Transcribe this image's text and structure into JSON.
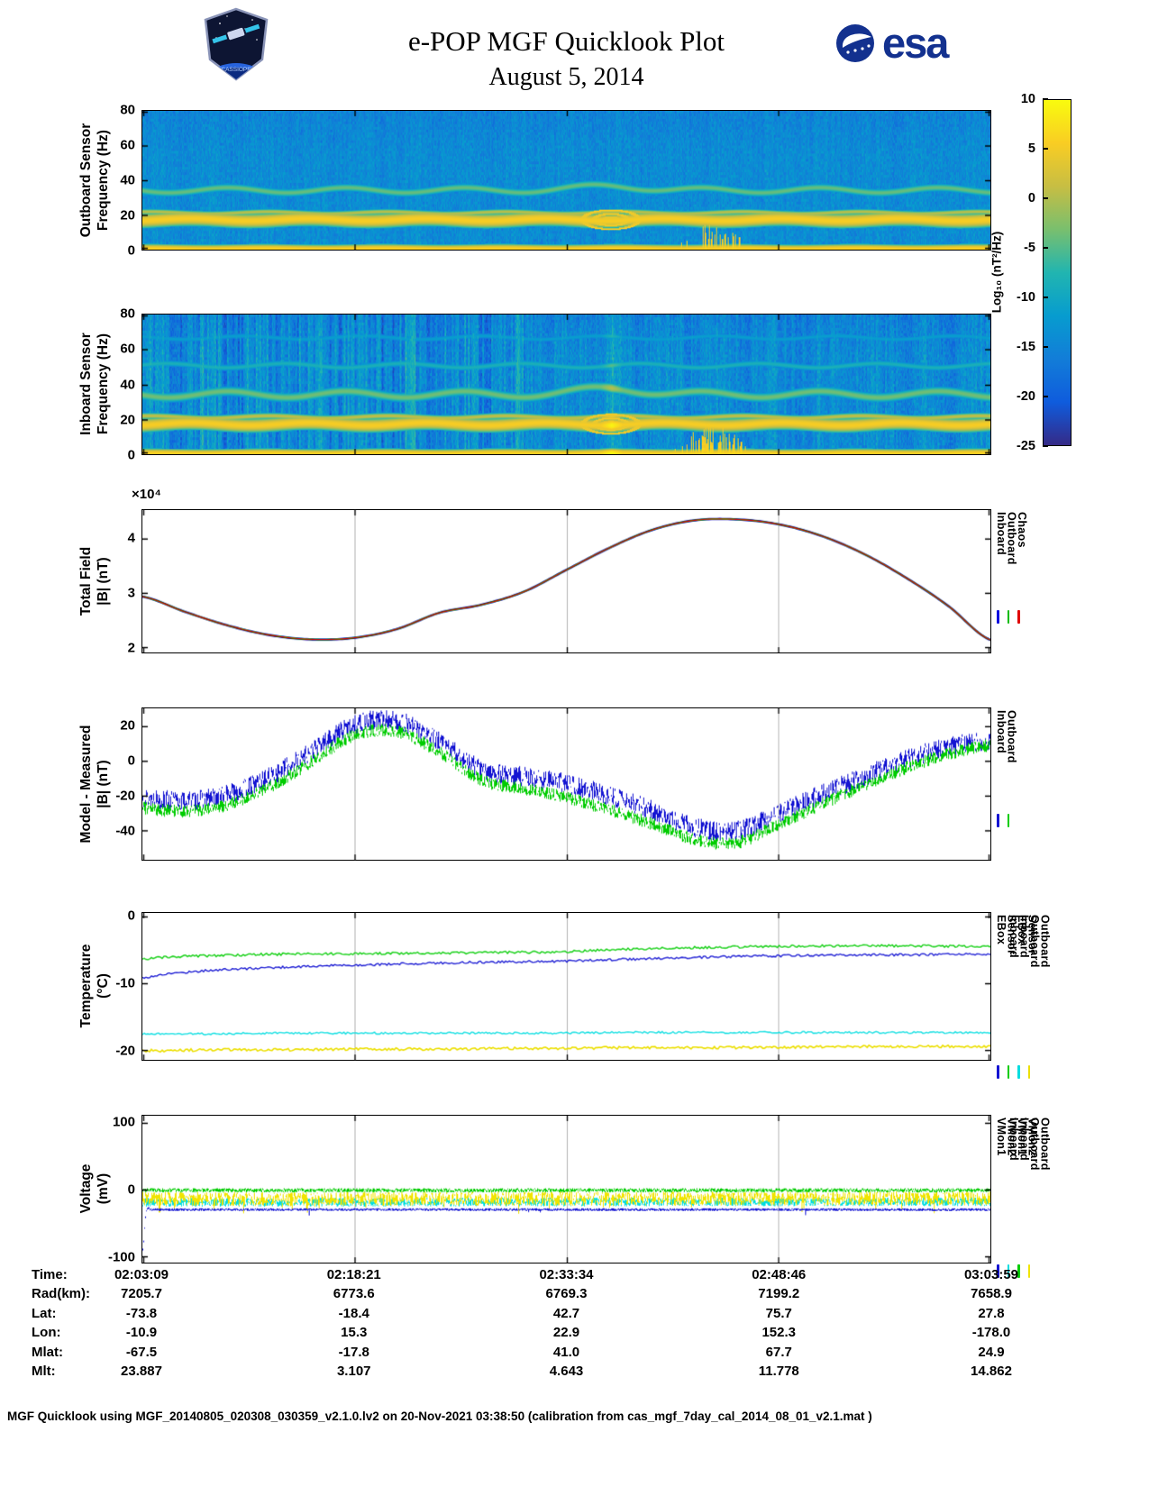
{
  "page": {
    "title_line1": "e-POP MGF Quicklook Plot",
    "title_line2": "August 5, 2014",
    "footer": "MGF Quicklook using MGF_20140805_020308_030359_v2.1.0.lv2 on 20-Nov-2021 03:38:50 (calibration from cas_mgf_7day_cal_2014_08_01_v2.1.mat )"
  },
  "logos": {
    "esa_text": "esa",
    "cassiope_text": "CASSIOPE"
  },
  "colorbar": {
    "label": "Log₁₀ (nT²/Hz)",
    "ticks": [
      "10",
      "5",
      "0",
      "-5",
      "-10",
      "-15",
      "-20",
      "-25"
    ],
    "value_range": [
      -25,
      10
    ],
    "colormap": [
      "#352a87",
      "#0f5cdd",
      "#127dd8",
      "#079ccf",
      "#21b5b0",
      "#79bf6e",
      "#c7be43",
      "#f9cd23",
      "#f9fb0e"
    ]
  },
  "time_axis": {
    "rows": [
      {
        "label": "Time:",
        "values": [
          "02:03:09",
          "02:18:21",
          "02:33:34",
          "02:48:46",
          "03:03:59"
        ]
      },
      {
        "label": "Rad(km):",
        "values": [
          "7205.7",
          "6773.6",
          "6769.3",
          "7199.2",
          "7658.9"
        ]
      },
      {
        "label": "Lat:",
        "values": [
          "-73.8",
          "-18.4",
          "42.7",
          "75.7",
          "27.8"
        ]
      },
      {
        "label": "Lon:",
        "values": [
          "-10.9",
          "15.3",
          "22.9",
          "152.3",
          "-178.0"
        ]
      },
      {
        "label": "Mlat:",
        "values": [
          "-67.5",
          "-17.8",
          "41.0",
          "67.7",
          "24.9"
        ]
      },
      {
        "label": "Mlt:",
        "values": [
          "23.887",
          "3.107",
          "4.643",
          "11.778",
          "14.862"
        ]
      }
    ]
  },
  "chart_data": [
    {
      "type": "heatmap",
      "id": "outboard_spectrogram",
      "ylabel": [
        "Outboard Sensor",
        "Frequency (Hz)"
      ],
      "xlabel": "",
      "ylim": [
        0,
        80
      ],
      "yticks": [
        0,
        20,
        40,
        60,
        80
      ],
      "x_range": [
        "02:03:09",
        "03:03:59"
      ],
      "value_units": "Log₁₀ (nT²/Hz)",
      "value_range": [
        -25,
        10
      ],
      "background_level": -14,
      "noise_amp": 2.4,
      "stripe_amp": 1.0,
      "bands": [
        {
          "freq": 0.7,
          "halfwidth": 1.1,
          "level": 6,
          "wiggle": 0.2
        },
        {
          "freq": 17.5,
          "halfwidth": 1.8,
          "level": 5.5,
          "wiggle": 0.7
        },
        {
          "freq": 21.5,
          "halfwidth": 0.7,
          "level": 0.5,
          "wiggle": 0.6
        },
        {
          "freq": 34.5,
          "halfwidth": 1.1,
          "level": -4,
          "wiggle": 1.5,
          "bump": {
            "x": 0.553,
            "df": 2.5,
            "width": 0.05
          }
        }
      ],
      "ellipse": {
        "x_center": 0.552,
        "freq_center": 17.5,
        "x_halfwidth": 0.033,
        "freq_halfheight": 5.5,
        "level": 4.5
      },
      "bursts": {
        "x_start": 0.63,
        "x_end": 0.715,
        "max_freq": 14,
        "level": 6.2,
        "density": 0.45
      },
      "seed": 5
    },
    {
      "type": "heatmap",
      "id": "inboard_spectrogram",
      "ylabel": [
        "Inboard Sensor",
        "Frequency (Hz)"
      ],
      "xlabel": "",
      "ylim": [
        0,
        80
      ],
      "yticks": [
        0,
        20,
        40,
        60,
        80
      ],
      "x_range": [
        "02:03:09",
        "03:03:59"
      ],
      "value_units": "Log₁₀ (nT²/Hz)",
      "value_range": [
        -25,
        10
      ],
      "background_level": -14,
      "noise_amp": 2.8,
      "stripe_amp": 2.6,
      "stripes_left_heavy": true,
      "bands": [
        {
          "freq": 0.7,
          "halfwidth": 1.1,
          "level": 6,
          "wiggle": 0.2
        },
        {
          "freq": 17.5,
          "halfwidth": 1.7,
          "level": 5.5,
          "wiggle": 0.8
        },
        {
          "freq": 21.5,
          "halfwidth": 0.8,
          "level": 1,
          "wiggle": 0.7
        },
        {
          "freq": 34.5,
          "halfwidth": 1.3,
          "level": -3.5,
          "wiggle": 1.8,
          "bump": {
            "x": 0.553,
            "df": 3.5,
            "width": 0.05
          }
        },
        {
          "freq": 51,
          "halfwidth": 1.0,
          "level": -8.5,
          "wiggle": 1.2
        },
        {
          "freq": 67,
          "halfwidth": 0.9,
          "level": -11.5,
          "wiggle": 1.0
        }
      ],
      "light_column": {
        "x_center": 0.553,
        "halfwidth": 0.013,
        "delta": 4
      },
      "ellipse": {
        "x_center": 0.552,
        "freq_center": 17.5,
        "x_halfwidth": 0.033,
        "freq_halfheight": 5.5,
        "level": 4.5
      },
      "bursts": {
        "x_start": 0.625,
        "x_end": 0.72,
        "max_freq": 17,
        "level": 6.5,
        "density": 0.6
      },
      "seed": 11
    },
    {
      "type": "line",
      "id": "total_field",
      "ylabel": [
        "Total Field",
        "|B| (nT)"
      ],
      "xlabel": "",
      "scale_label": "×10⁴",
      "ylim": [
        19000,
        45200
      ],
      "yticks": [
        20000,
        30000,
        40000
      ],
      "ytick_labels": [
        "2",
        "3",
        "4"
      ],
      "x_range": [
        "02:03:09",
        "03:03:59"
      ],
      "x": [
        0,
        0.05,
        0.1,
        0.15,
        0.2,
        0.25,
        0.3,
        0.35,
        0.4,
        0.45,
        0.5,
        0.55,
        0.6,
        0.65,
        0.7,
        0.75,
        0.8,
        0.85,
        0.9,
        0.95,
        1
      ],
      "series": [
        {
          "name": "Inboard",
          "color": "#0d0de0",
          "z": 1,
          "render": "smooth",
          "width": 2.6,
          "values": [
            29300,
            26500,
            24000,
            22200,
            21400,
            21700,
            23300,
            26300,
            27800,
            30200,
            34200,
            38200,
            41500,
            43300,
            43500,
            42600,
            40500,
            37200,
            32800,
            27600,
            21300
          ]
        },
        {
          "name": "Outboard",
          "color": "#00bb00",
          "z": 2,
          "render": "smooth",
          "width": 1.8,
          "values": [
            29300,
            26500,
            24000,
            22200,
            21400,
            21700,
            23300,
            26300,
            27800,
            30200,
            34200,
            38200,
            41500,
            43300,
            43500,
            42600,
            40500,
            37200,
            32800,
            27600,
            21300
          ]
        },
        {
          "name": "Chaos",
          "color": "#e00000",
          "z": 3,
          "render": "smooth",
          "width": 1.1,
          "values": [
            29300,
            26500,
            24000,
            22200,
            21400,
            21700,
            23300,
            26300,
            27800,
            30200,
            34200,
            38200,
            41500,
            43300,
            43500,
            42600,
            40500,
            37200,
            32800,
            27600,
            21300
          ]
        }
      ],
      "legend": [
        {
          "label": "Inboard",
          "color": "#0d0de0"
        },
        {
          "label": "Outboard",
          "color": "#00bb00"
        },
        {
          "label": "Chaos",
          "color": "#e00000"
        }
      ],
      "seed": 3
    },
    {
      "type": "line",
      "id": "model_minus_measured",
      "ylabel": [
        "Model - Measured",
        "|B| (nT)"
      ],
      "xlabel": "",
      "ylim": [
        -57,
        30
      ],
      "yticks": [
        -40,
        -20,
        0,
        20
      ],
      "x_range": [
        "02:03:09",
        "03:03:59"
      ],
      "x": [
        0,
        0.05,
        0.1,
        0.15,
        0.2,
        0.25,
        0.3,
        0.35,
        0.4,
        0.45,
        0.5,
        0.55,
        0.6,
        0.65,
        0.7,
        0.75,
        0.8,
        0.85,
        0.9,
        0.95,
        1
      ],
      "series": [
        {
          "name": "Inboard",
          "color": "#1414d2",
          "z": 1,
          "render": "band",
          "noise": 5.5,
          "values": [
            -21,
            -23,
            -19,
            -9,
            6,
            21,
            23,
            11,
            -5,
            -9,
            -13,
            -20,
            -28,
            -38,
            -40,
            -30,
            -19,
            -9,
            1,
            8,
            12
          ]
        },
        {
          "name": "Outboard",
          "color": "#00cc00",
          "z": 2,
          "render": "band",
          "noise": 3.5,
          "values": [
            -27,
            -29,
            -25,
            -15,
            0,
            15,
            17,
            5,
            -11,
            -16,
            -21,
            -28,
            -36,
            -45,
            -47,
            -36,
            -25,
            -14,
            -4,
            4,
            9
          ]
        }
      ],
      "legend": [
        {
          "label": "Inboard",
          "color": "#1414d2"
        },
        {
          "label": "Outboard",
          "color": "#00cc00"
        }
      ],
      "seed": 13
    },
    {
      "type": "line",
      "id": "temperature",
      "ylabel": [
        "Temperature",
        "(°C)"
      ],
      "xlabel": "",
      "ylim": [
        -21.5,
        0.5
      ],
      "yticks": [
        0,
        -10,
        -20
      ],
      "x_range": [
        "02:03:09",
        "03:03:59"
      ],
      "x": [
        0,
        0.03,
        0.08,
        0.15,
        0.25,
        0.35,
        0.45,
        0.5,
        0.55,
        0.65,
        0.75,
        0.85,
        1
      ],
      "series": [
        {
          "name": "Inboard EBox",
          "color": "#1414d2",
          "z": 1,
          "render": "noisyline",
          "noise": 0.18,
          "width": 1.3,
          "values": [
            -9.2,
            -8.6,
            -8.1,
            -7.7,
            -7.3,
            -7.0,
            -6.8,
            -6.7,
            -6.5,
            -6.2,
            -5.9,
            -5.8,
            -5.7
          ]
        },
        {
          "name": "Inboard Sensor",
          "color": "#00cc00",
          "z": 2,
          "render": "noisyline",
          "noise": 0.18,
          "width": 1.3,
          "values": [
            -6.4,
            -6.1,
            -5.9,
            -5.7,
            -5.6,
            -5.5,
            -5.4,
            -5.3,
            -5.0,
            -4.7,
            -4.5,
            -4.4,
            -4.5
          ]
        },
        {
          "name": "Outboard EBox",
          "color": "#00dde0",
          "z": 3,
          "render": "noisyline",
          "noise": 0.15,
          "width": 1.3,
          "values": [
            -17.6,
            -17.6,
            -17.6,
            -17.5,
            -17.5,
            -17.5,
            -17.5,
            -17.5,
            -17.4,
            -17.4,
            -17.4,
            -17.4,
            -17.4
          ]
        },
        {
          "name": "Outboard Sensor",
          "color": "#ecdf00",
          "z": 4,
          "render": "noisyline",
          "noise": 0.2,
          "width": 1.6,
          "values": [
            -20.1,
            -20.1,
            -20.0,
            -20.0,
            -19.9,
            -19.9,
            -19.8,
            -19.8,
            -19.7,
            -19.7,
            -19.6,
            -19.5,
            -19.5
          ]
        }
      ],
      "legend": [
        {
          "label": "Inboard EBox",
          "color": "#1414d2"
        },
        {
          "label": "Inboard Sensor",
          "color": "#00cc00"
        },
        {
          "label": "Outboard EBox",
          "color": "#00dde0"
        },
        {
          "label": "Outboard Sensor",
          "color": "#ecdf00"
        }
      ],
      "seed": 17
    },
    {
      "type": "line",
      "id": "voltage",
      "ylabel": [
        "Voltage",
        "(mV)"
      ],
      "xlabel": "",
      "ylim": [
        -110,
        110
      ],
      "yticks": [
        100,
        0,
        -100
      ],
      "x_range": [
        "02:03:09",
        "03:03:59"
      ],
      "series": [
        {
          "name": "Inboard VMon1",
          "color": "#1414d2",
          "z": 4,
          "render": "band",
          "noise": 1.4,
          "spike": {
            "p": 0.01,
            "len": 9
          },
          "x": [
            0,
            0.004,
            0.01,
            1
          ],
          "values": [
            -90,
            -32,
            -30,
            -30
          ]
        },
        {
          "name": "Inboard VMon2",
          "color": "#00dde0",
          "z": 1,
          "render": "band",
          "noise": 6,
          "x": [
            0,
            1
          ],
          "values": [
            -19,
            -18
          ]
        },
        {
          "name": "Outboard VMon1",
          "color": "#00cc00",
          "z": 3,
          "render": "band",
          "noise": 2.5,
          "x": [
            0,
            1
          ],
          "values": [
            -1,
            -1
          ]
        },
        {
          "name": "Outboard VMon2",
          "color": "#f0e400",
          "z": 2,
          "render": "band",
          "noise": 10,
          "spike": {
            "p": 0.05,
            "len": 14
          },
          "x": [
            0,
            1
          ],
          "values": [
            -14,
            -13
          ]
        }
      ],
      "legend": [
        {
          "label": "Inboard VMon1",
          "color": "#1414d2"
        },
        {
          "label": "Inboard VMon2",
          "color": "#00dde0"
        },
        {
          "label": "Outboard VMon1",
          "color": "#00cc00"
        },
        {
          "label": "Outboard VMon2",
          "color": "#f0e400"
        }
      ],
      "seed": 23
    }
  ]
}
